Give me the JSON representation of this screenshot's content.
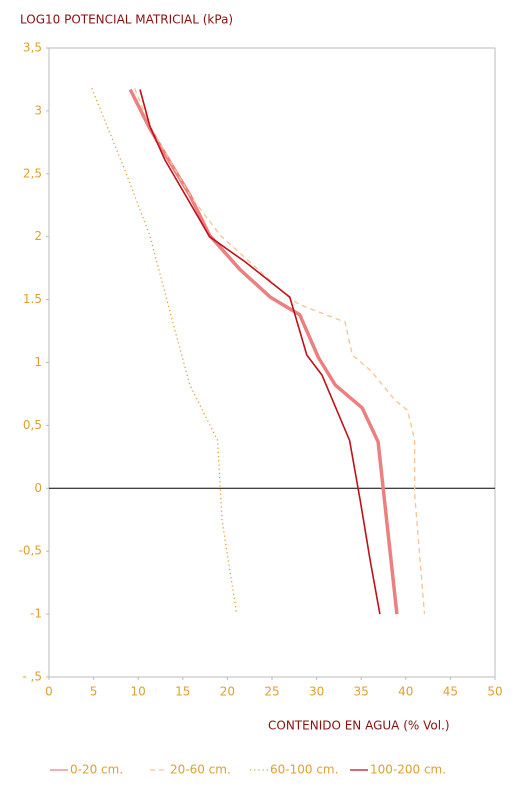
{
  "chart_data": {
    "type": "line",
    "title": "LOG10 POTENCIAL MATRICIAL (kPa)",
    "x_label": "CONTENIDO EN AGUA (% Vol.)",
    "xlim": [
      0,
      50
    ],
    "xticks": [
      0,
      5,
      10,
      15,
      20,
      25,
      30,
      35,
      40,
      45,
      50
    ],
    "ylim": [
      -1.5,
      3.5
    ],
    "yticks": [
      {
        "value": 3.5,
        "label": "3,5"
      },
      3,
      {
        "value": 2.5,
        "label": "2,5"
      },
      2,
      1.5,
      1,
      {
        "value": 0.5,
        "label": "0,5"
      },
      0,
      {
        "value": -0.5,
        "label": "-0,5"
      },
      -1,
      {
        "value": -1.5,
        "label": "- ,5"
      }
    ],
    "zero_line": true,
    "legend": "bottom",
    "series": [
      {
        "name": "0-20 cm.",
        "color": "#ec7f7f",
        "style": "thick",
        "x": [
          9.1,
          11.3,
          15.8,
          18.0,
          21.4,
          24.8,
          28.1,
          30.2,
          32.1,
          35.1,
          36.9,
          39.0
        ],
        "values": [
          3.17,
          2.86,
          2.33,
          2.01,
          1.74,
          1.52,
          1.38,
          1.04,
          0.82,
          0.64,
          0.37,
          -1.0
        ]
      },
      {
        "name": "20-60 cm.",
        "color": "#f6c391",
        "style": "dashed",
        "x": [
          9.6,
          11.3,
          15.8,
          19.2,
          22.5,
          27.0,
          28.1,
          33.2,
          34.0,
          36.0,
          38.8,
          40.2,
          41.0,
          41.0,
          42.1
        ],
        "values": [
          3.18,
          2.88,
          2.33,
          2.01,
          1.8,
          1.51,
          1.46,
          1.32,
          1.06,
          0.94,
          0.7,
          0.62,
          0.38,
          -0.05,
          -1.0
        ]
      },
      {
        "name": "60-100 cm.",
        "color": "#e49a3e",
        "style": "dotted",
        "x": [
          4.8,
          8.5,
          11.3,
          14.1,
          15.8,
          18.9,
          19.4,
          21.0
        ],
        "values": [
          3.18,
          2.53,
          2.01,
          1.26,
          0.82,
          0.38,
          -0.25,
          -0.98
        ]
      },
      {
        "name": "100-200 cm.",
        "color": "#c0101a",
        "style": "thin",
        "x": [
          10.2,
          11.3,
          13.0,
          18.0,
          22.0,
          27.0,
          28.9,
          30.6,
          33.7,
          34.9,
          36.0,
          37.1
        ],
        "values": [
          3.17,
          2.88,
          2.61,
          2.0,
          1.8,
          1.52,
          1.06,
          0.9,
          0.38,
          -0.1,
          -0.57,
          -1.0
        ]
      }
    ]
  }
}
